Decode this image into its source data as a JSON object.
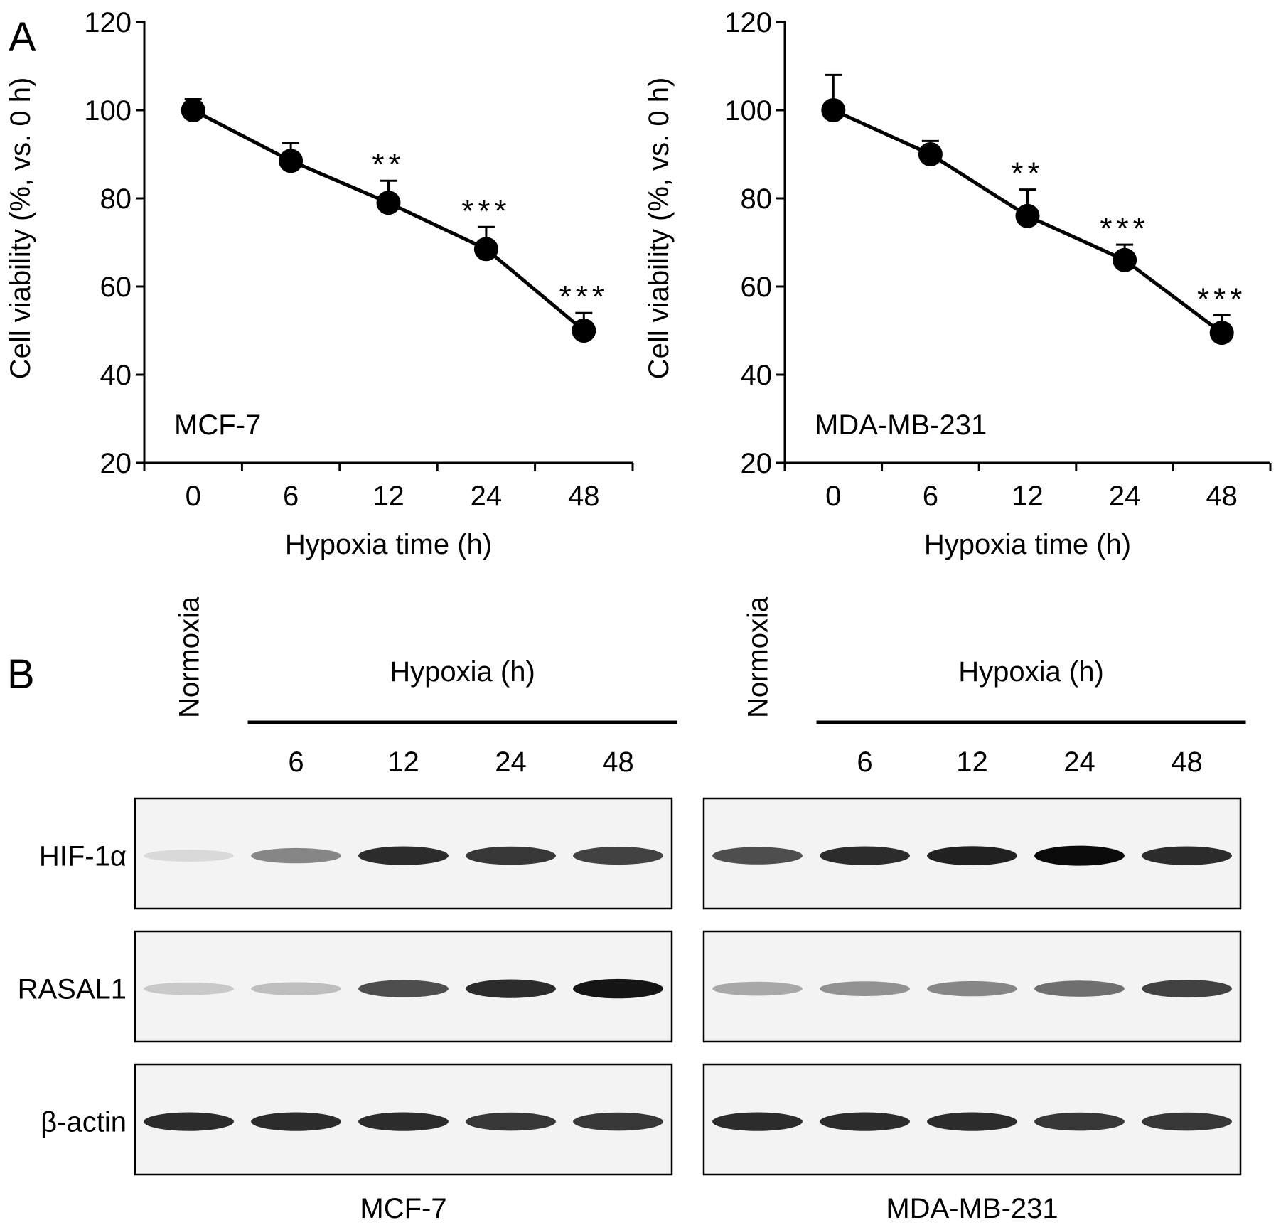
{
  "panel_a": {
    "label": "A",
    "xlabel": "Hypoxia  time (h)",
    "ylabel": "Cell viability  (%, vs. 0 h)"
  },
  "chart_data": [
    {
      "type": "line",
      "panel": "A",
      "inset_label": "MCF-7",
      "categories": [
        "0",
        "6",
        "12",
        "24",
        "48"
      ],
      "series": [
        {
          "values": [
            100,
            88.5,
            79,
            68.5,
            50
          ],
          "errors": [
            2.5,
            4,
            5,
            5,
            4
          ],
          "significance": [
            "",
            "",
            "**",
            "***",
            "***"
          ]
        }
      ],
      "xlabel": "Hypoxia  time (h)",
      "ylabel": "Cell viability  (%, vs. 0 h)",
      "ylim": [
        20,
        120
      ],
      "yticks": [
        20,
        40,
        60,
        80,
        100,
        120
      ],
      "grid": false
    },
    {
      "type": "line",
      "panel": "A",
      "inset_label": "MDA-MB-231",
      "categories": [
        "0",
        "6",
        "12",
        "24",
        "48"
      ],
      "series": [
        {
          "values": [
            100,
            90,
            76,
            66,
            49.5
          ],
          "errors": [
            8,
            3,
            6,
            3.5,
            4
          ],
          "significance": [
            "",
            "",
            "**",
            "***",
            "***"
          ]
        }
      ],
      "xlabel": "Hypoxia  time (h)",
      "ylabel": "Cell viability  (%, vs. 0 h)",
      "ylim": [
        20,
        120
      ],
      "yticks": [
        20,
        40,
        60,
        80,
        100,
        120
      ],
      "grid": false
    }
  ],
  "panel_b": {
    "label": "B",
    "normoxia_label": "Normoxia",
    "hypoxia_label": "Hypoxia (h)",
    "time_labels": [
      "6",
      "12",
      "24",
      "48"
    ],
    "row_labels": [
      "HIF-1α",
      "RASAL1",
      "β-actin"
    ],
    "blots": [
      {
        "cell_line": "MCF-7",
        "rows": [
          {
            "protein": "HIF-1α",
            "intensity": [
              0.08,
              0.45,
              0.85,
              0.8,
              0.75
            ]
          },
          {
            "protein": "RASAL1",
            "intensity": [
              0.15,
              0.2,
              0.7,
              0.85,
              0.95
            ]
          },
          {
            "protein": "β-actin",
            "intensity": [
              0.85,
              0.85,
              0.85,
              0.8,
              0.8
            ]
          }
        ]
      },
      {
        "cell_line": "MDA-MB-231",
        "rows": [
          {
            "protein": "HIF-1α",
            "intensity": [
              0.7,
              0.85,
              0.9,
              1.0,
              0.85
            ]
          },
          {
            "protein": "RASAL1",
            "intensity": [
              0.3,
              0.4,
              0.45,
              0.55,
              0.75
            ]
          },
          {
            "protein": "β-actin",
            "intensity": [
              0.85,
              0.85,
              0.85,
              0.8,
              0.8
            ]
          }
        ]
      }
    ]
  }
}
